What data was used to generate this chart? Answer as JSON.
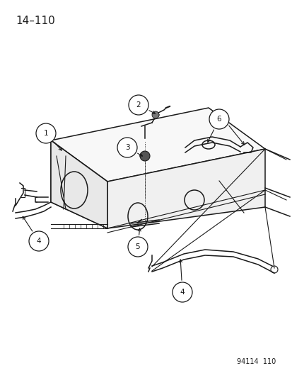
{
  "title": "14–110",
  "footer": "94114  110",
  "background_color": "#ffffff",
  "line_color": "#1a1a1a",
  "title_fontsize": 11,
  "footer_fontsize": 7
}
